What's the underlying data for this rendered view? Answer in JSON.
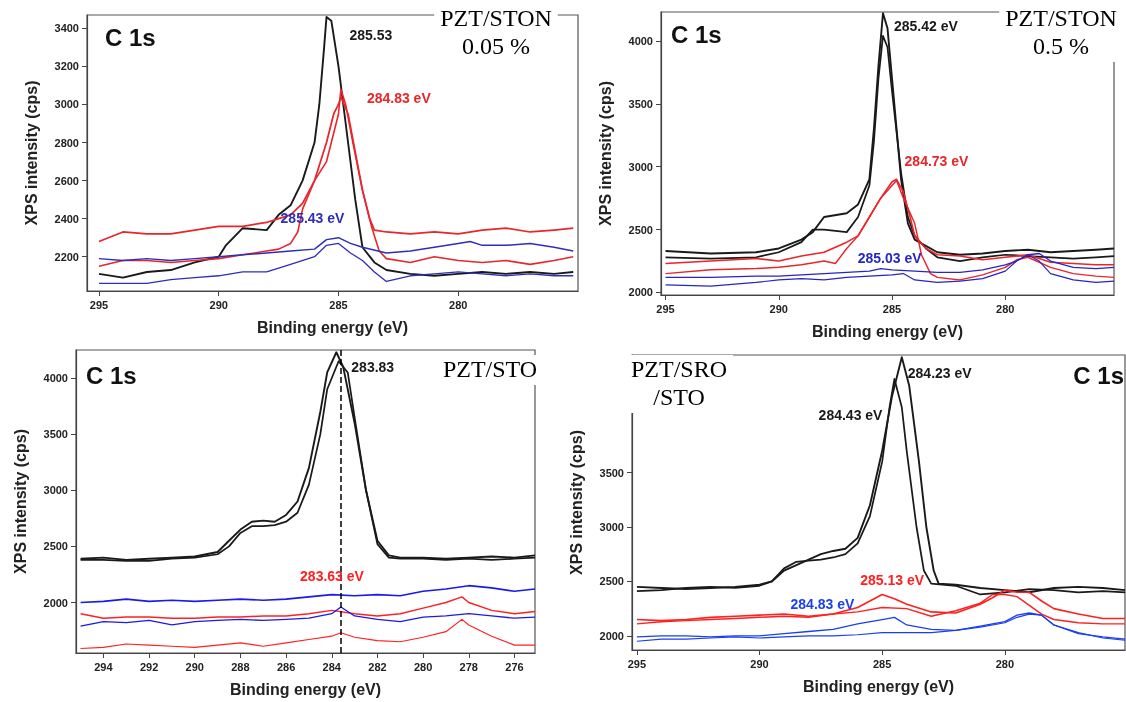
{
  "chart_data": [
    {
      "type": "line",
      "title": "PZT/STON",
      "subtitle": "0.05 %",
      "xlabel": "Binding energy (eV)",
      "ylabel": "XPS intensity (cps)",
      "xlim": [
        295.5,
        275
      ],
      "ylim": [
        2020,
        3470
      ],
      "xticks": [
        295,
        290,
        285,
        280
      ],
      "yticks": [
        2200,
        2400,
        2600,
        2800,
        3000,
        3200,
        3400
      ],
      "grid": false,
      "marker": "none",
      "annotations": [
        "C 1s",
        {
          "text": "285.53",
          "x": 285.5,
          "y": 3460
        },
        {
          "text": "284.83 eV",
          "x": 284.9,
          "y": 3080
        },
        {
          "text": "285.43 eV",
          "x": 285,
          "y": 2300
        }
      ],
      "series": [
        {
          "color": "#1a1a1a",
          "x": [
            295,
            294,
            293,
            292,
            291,
            290,
            289.7,
            289,
            288,
            287.5,
            287,
            286.5,
            286,
            285.8,
            285.6,
            285.5,
            285.3,
            285,
            284.7,
            284.3,
            284,
            283.5,
            283,
            282,
            281,
            280,
            279,
            278,
            277,
            276,
            275.2
          ],
          "values": [
            2110,
            2090,
            2120,
            2130,
            2170,
            2200,
            2260,
            2350,
            2340,
            2420,
            2470,
            2600,
            2800,
            3000,
            3300,
            3460,
            3440,
            3200,
            2900,
            2500,
            2250,
            2170,
            2130,
            2110,
            2100,
            2110,
            2120,
            2110,
            2120,
            2110,
            2120
          ]
        },
        {
          "color": "#e8262b",
          "x": [
            295,
            294,
            293,
            292,
            291,
            290,
            289,
            288,
            287.5,
            287,
            286.5,
            286,
            285.5,
            285.2,
            285,
            284.9,
            284.6,
            284.3,
            284,
            283.7,
            283.5,
            283,
            282,
            281,
            280,
            279,
            278,
            277,
            276,
            275.2
          ],
          "values": [
            2280,
            2330,
            2320,
            2320,
            2340,
            2360,
            2360,
            2380,
            2400,
            2420,
            2480,
            2600,
            2800,
            2950,
            3000,
            3040,
            2950,
            2750,
            2550,
            2400,
            2340,
            2330,
            2320,
            2330,
            2320,
            2340,
            2350,
            2330,
            2340,
            2350
          ]
        },
        {
          "color": "#e8262b",
          "x": [
            295,
            294,
            293,
            292,
            291,
            290,
            289,
            288,
            287.5,
            287,
            286.7,
            286.5,
            286,
            285.5,
            285.3,
            285,
            284.9,
            284.7,
            284.4,
            284,
            283.6,
            283.3,
            283,
            282,
            281,
            280,
            279,
            278,
            277,
            276,
            275.2
          ],
          "values": [
            2150,
            2180,
            2180,
            2170,
            2180,
            2190,
            2210,
            2230,
            2240,
            2270,
            2330,
            2450,
            2600,
            2700,
            2800,
            2950,
            3080,
            3000,
            2800,
            2550,
            2350,
            2230,
            2190,
            2170,
            2200,
            2180,
            2170,
            2180,
            2160,
            2180,
            2200
          ]
        },
        {
          "color": "#2e2eb8",
          "x": [
            295,
            294,
            293,
            292,
            291,
            290,
            289,
            288,
            287,
            286,
            285.5,
            285,
            284.5,
            284,
            283,
            282,
            281,
            280,
            279.5,
            279,
            278,
            277,
            276,
            275.2
          ],
          "values": [
            2190,
            2180,
            2190,
            2180,
            2190,
            2200,
            2210,
            2220,
            2230,
            2240,
            2290,
            2300,
            2270,
            2250,
            2220,
            2230,
            2250,
            2270,
            2280,
            2260,
            2260,
            2270,
            2250,
            2230
          ]
        },
        {
          "color": "#2e2eb8",
          "x": [
            295,
            294,
            293,
            292,
            291,
            290,
            289,
            288,
            287,
            286,
            285.5,
            285,
            284.5,
            284,
            283.5,
            283,
            282,
            281,
            280,
            279,
            278,
            277,
            276,
            275.2
          ],
          "values": [
            2060,
            2060,
            2060,
            2080,
            2090,
            2100,
            2120,
            2120,
            2160,
            2200,
            2260,
            2270,
            2220,
            2180,
            2120,
            2070,
            2100,
            2110,
            2120,
            2110,
            2100,
            2110,
            2100,
            2100
          ]
        }
      ]
    },
    {
      "type": "line",
      "title": "PZT/STON",
      "subtitle": "0.5 %",
      "xlabel": "Binding energy (eV)",
      "ylabel": "XPS intensity (cps)",
      "xlim": [
        295.2,
        275.2
      ],
      "ylim": [
        1980,
        4230
      ],
      "xticks": [
        295,
        290,
        285,
        280
      ],
      "yticks": [
        2000,
        2500,
        3000,
        3500,
        4000
      ],
      "grid": false,
      "marker": "none",
      "annotations": [
        "C 1s",
        {
          "text": "285.42 eV",
          "x": 285.4,
          "y": 4220
        },
        {
          "text": "284.73 eV",
          "x": 284.8,
          "y": 2900
        },
        {
          "text": "285.03 eV",
          "x": 285.5,
          "y": 2190
        }
      ],
      "series": [
        {
          "color": "#1a1a1a",
          "x": [
            295,
            293,
            291,
            290,
            289,
            288.5,
            288,
            287,
            286.5,
            286,
            285.8,
            285.6,
            285.4,
            285.2,
            285,
            284.6,
            284.3,
            284,
            283,
            282,
            281,
            280,
            279,
            278,
            277,
            276,
            275.2
          ],
          "values": [
            2330,
            2310,
            2320,
            2350,
            2420,
            2480,
            2600,
            2630,
            2700,
            2900,
            3300,
            3800,
            4220,
            4100,
            3700,
            2900,
            2550,
            2420,
            2320,
            2300,
            2310,
            2330,
            2340,
            2320,
            2330,
            2340,
            2350
          ]
        },
        {
          "color": "#1a1a1a",
          "x": [
            295,
            293,
            291,
            290,
            289,
            288.5,
            288,
            287,
            286.5,
            286,
            285.8,
            285.6,
            285.4,
            285.2,
            285,
            284.6,
            284.3,
            284,
            283.5,
            283,
            282,
            281,
            280,
            279,
            278,
            277,
            276,
            275.2
          ],
          "values": [
            2280,
            2270,
            2280,
            2320,
            2400,
            2500,
            2500,
            2480,
            2600,
            2850,
            3200,
            3700,
            4040,
            3950,
            3600,
            2950,
            2600,
            2450,
            2350,
            2280,
            2250,
            2280,
            2300,
            2290,
            2280,
            2270,
            2280,
            2290
          ]
        },
        {
          "color": "#e8262b",
          "x": [
            295,
            293,
            291,
            290,
            289,
            288,
            287,
            286.5,
            286,
            285.5,
            285,
            284.8,
            284.5,
            284.2,
            284,
            283.5,
            283,
            282,
            281,
            280,
            279,
            278,
            277,
            276,
            275.2
          ],
          "values": [
            2230,
            2250,
            2270,
            2250,
            2290,
            2320,
            2400,
            2450,
            2600,
            2750,
            2880,
            2900,
            2800,
            2600,
            2450,
            2350,
            2300,
            2290,
            2260,
            2280,
            2300,
            2240,
            2230,
            2220,
            2220
          ]
        },
        {
          "color": "#e8262b",
          "x": [
            295,
            293,
            291,
            290,
            289,
            288,
            287.5,
            287,
            286.5,
            286,
            285.5,
            285,
            284.8,
            284.5,
            284,
            283.7,
            283.3,
            283,
            282,
            281,
            280,
            279.5,
            279,
            278,
            277,
            276,
            275.2
          ],
          "values": [
            2150,
            2180,
            2190,
            2200,
            2220,
            2250,
            2230,
            2350,
            2450,
            2600,
            2750,
            2850,
            2890,
            2750,
            2550,
            2300,
            2150,
            2120,
            2100,
            2140,
            2200,
            2260,
            2280,
            2200,
            2150,
            2130,
            2120
          ]
        },
        {
          "color": "#2525c8",
          "x": [
            295,
            293,
            291,
            290,
            289,
            288,
            287,
            286,
            285.5,
            285,
            284,
            283,
            282,
            281,
            280,
            279.5,
            279,
            278.5,
            278,
            277,
            276,
            275.2
          ],
          "values": [
            2120,
            2120,
            2130,
            2130,
            2140,
            2150,
            2160,
            2170,
            2190,
            2180,
            2170,
            2160,
            2160,
            2180,
            2220,
            2250,
            2300,
            2310,
            2250,
            2200,
            2190,
            2200
          ]
        },
        {
          "color": "#2525c8",
          "x": [
            295,
            293,
            291,
            290,
            289,
            288,
            287,
            286,
            285,
            284.5,
            284,
            283,
            282,
            281,
            280,
            279.5,
            279,
            278.5,
            278,
            277,
            276,
            275.2
          ],
          "values": [
            2060,
            2050,
            2080,
            2100,
            2110,
            2100,
            2120,
            2130,
            2140,
            2150,
            2100,
            2080,
            2090,
            2110,
            2170,
            2250,
            2300,
            2250,
            2150,
            2100,
            2080,
            2090
          ]
        }
      ]
    },
    {
      "type": "line",
      "title": "PZT/STO",
      "xlabel": "Binding energy (eV)",
      "ylabel": "XPS intensity (cps)",
      "xlim": [
        295.2,
        275.1
      ],
      "ylim": [
        1550,
        4250
      ],
      "xticks": [
        294,
        292,
        290,
        288,
        286,
        284,
        282,
        280,
        278,
        276
      ],
      "yticks": [
        2000,
        2500,
        3000,
        3500,
        4000
      ],
      "grid": false,
      "marker": "none",
      "annotations": [
        "C 1s",
        {
          "text": "283.83",
          "x": 283.8,
          "y": 4230
        },
        "283.63 eV"
      ],
      "ref_lines": [
        {
          "axis": "x",
          "value": 283.6,
          "color": "#000000",
          "line_style": "dashed"
        }
      ],
      "series": [
        {
          "color": "#1a1a1a",
          "x": [
            295,
            294,
            293,
            292,
            291,
            290,
            289,
            288.5,
            288,
            287.5,
            287,
            286.5,
            286,
            285.5,
            285,
            284.5,
            284.2,
            283.8,
            283.5,
            283,
            282.5,
            282,
            281.5,
            281,
            280,
            279,
            278,
            277,
            276,
            275.1
          ],
          "values": [
            2390,
            2400,
            2380,
            2390,
            2400,
            2410,
            2450,
            2550,
            2650,
            2720,
            2730,
            2720,
            2780,
            2900,
            3200,
            3700,
            4050,
            4230,
            4100,
            3600,
            3000,
            2550,
            2420,
            2400,
            2400,
            2390,
            2400,
            2410,
            2400,
            2420
          ]
        },
        {
          "color": "#1a1a1a",
          "x": [
            295,
            294,
            293,
            292,
            291,
            290,
            289,
            288.5,
            288,
            287.5,
            287,
            286.5,
            286,
            285.5,
            285,
            284.5,
            284.2,
            283.7,
            283.3,
            283,
            282.5,
            282,
            281.5,
            281,
            280,
            279,
            278,
            277,
            276,
            275.1
          ],
          "values": [
            2380,
            2380,
            2370,
            2370,
            2390,
            2400,
            2430,
            2500,
            2620,
            2680,
            2680,
            2690,
            2720,
            2800,
            3050,
            3500,
            3900,
            4150,
            4050,
            3650,
            3000,
            2520,
            2400,
            2390,
            2390,
            2380,
            2390,
            2380,
            2390,
            2400
          ]
        },
        {
          "color": "#1a1aeb",
          "x": [
            295,
            294,
            293,
            292,
            291,
            290,
            289,
            288,
            287,
            286,
            285,
            284,
            283,
            282,
            281,
            280,
            279,
            278,
            277,
            276,
            275.1
          ],
          "values": [
            2000,
            2010,
            2030,
            2010,
            2020,
            2010,
            2020,
            2030,
            2020,
            2030,
            2050,
            2070,
            2060,
            2070,
            2060,
            2100,
            2120,
            2150,
            2130,
            2100,
            2120
          ]
        },
        {
          "color": "#ff2020",
          "x": [
            295,
            294,
            293,
            292,
            291,
            290,
            289,
            288,
            287,
            286,
            285,
            284,
            283,
            282,
            281,
            280,
            279,
            278.3,
            278,
            277,
            276,
            275.1
          ],
          "values": [
            1900,
            1860,
            1870,
            1870,
            1860,
            1860,
            1870,
            1870,
            1880,
            1880,
            1900,
            1930,
            1900,
            1880,
            1900,
            1950,
            2000,
            2050,
            2000,
            1930,
            1900,
            1920
          ]
        },
        {
          "color": "#1a1aeb",
          "x": [
            295,
            294,
            293,
            292,
            291,
            290,
            289,
            288,
            287,
            286,
            285,
            284,
            283.6,
            283,
            282,
            281,
            280,
            279,
            278,
            277,
            276,
            275.1
          ],
          "values": [
            1790,
            1830,
            1820,
            1840,
            1800,
            1830,
            1840,
            1850,
            1840,
            1850,
            1860,
            1900,
            1960,
            1880,
            1850,
            1830,
            1870,
            1880,
            1900,
            1880,
            1860,
            1870
          ]
        },
        {
          "color": "#ff2020",
          "x": [
            295,
            294,
            293,
            292,
            291,
            290,
            289,
            288,
            287,
            286,
            285,
            284,
            283.6,
            283,
            282,
            281,
            280,
            279,
            278.3,
            278,
            277,
            276,
            275.1
          ],
          "values": [
            1590,
            1600,
            1630,
            1620,
            1610,
            1600,
            1620,
            1640,
            1610,
            1640,
            1670,
            1700,
            1730,
            1690,
            1660,
            1650,
            1690,
            1740,
            1850,
            1800,
            1700,
            1620,
            1620
          ]
        }
      ]
    },
    {
      "type": "line",
      "title": "PZT/SRO",
      "subtitle": "/STO",
      "xlabel": "Binding energy (eV)",
      "ylabel": "XPS intensity (cps)",
      "xlim": [
        295.2,
        275.1
      ],
      "ylim": [
        1870,
        4580
      ],
      "xticks": [
        295,
        290,
        285,
        280
      ],
      "yticks": [
        2000,
        2500,
        3000,
        3500
      ],
      "grid": false,
      "marker": "none",
      "annotations": [
        "C 1s",
        {
          "text": "284.23 eV",
          "x": 284.2,
          "y": 4560
        },
        {
          "text": "284.43 eV",
          "x": 284.5,
          "y": 4360
        },
        {
          "text": "285.13 eV",
          "x": 285,
          "y": 2380
        },
        {
          "text": "284.83 eV",
          "x": 284.5,
          "y": 2170
        }
      ],
      "series": [
        {
          "color": "#1a1a1a",
          "x": [
            295,
            294,
            293,
            292,
            291,
            290,
            289.5,
            289,
            288.5,
            288,
            287.5,
            287,
            286.5,
            286,
            285.5,
            285,
            284.6,
            284.2,
            283.9,
            283.5,
            283.2,
            282.9,
            282.7,
            282,
            281,
            280,
            279,
            278,
            277,
            276,
            275.1
          ],
          "values": [
            2450,
            2440,
            2430,
            2440,
            2450,
            2470,
            2500,
            2600,
            2650,
            2700,
            2750,
            2780,
            2800,
            2900,
            3200,
            3700,
            4200,
            4560,
            4300,
            3600,
            3000,
            2600,
            2480,
            2470,
            2440,
            2420,
            2400,
            2440,
            2450,
            2440,
            2420
          ]
        },
        {
          "color": "#1a1a1a",
          "x": [
            295,
            294,
            293,
            292,
            291,
            290,
            289.5,
            289,
            288.5,
            288,
            287.5,
            287,
            286.5,
            286,
            285.5,
            285,
            284.7,
            284.5,
            284.2,
            284,
            283.6,
            283.3,
            283,
            282,
            281,
            280,
            279,
            278,
            277,
            276,
            275.1
          ],
          "values": [
            2410,
            2420,
            2440,
            2450,
            2440,
            2460,
            2500,
            2620,
            2680,
            2690,
            2700,
            2720,
            2750,
            2850,
            3100,
            3600,
            4100,
            4360,
            4100,
            3700,
            3000,
            2600,
            2480,
            2460,
            2380,
            2400,
            2430,
            2420,
            2400,
            2410,
            2400
          ]
        },
        {
          "color": "#ff2020",
          "x": [
            295,
            294,
            293,
            292,
            291,
            290,
            289,
            288,
            287,
            286,
            285.5,
            285,
            284.5,
            284,
            283,
            282,
            281,
            280.5,
            280,
            279.5,
            279,
            278.5,
            278,
            277,
            276,
            275.1
          ],
          "values": [
            2150,
            2140,
            2150,
            2170,
            2180,
            2190,
            2200,
            2180,
            2200,
            2260,
            2320,
            2380,
            2340,
            2290,
            2220,
            2210,
            2290,
            2350,
            2420,
            2400,
            2400,
            2320,
            2250,
            2200,
            2160,
            2160
          ]
        },
        {
          "color": "#ff2020",
          "x": [
            295,
            294,
            293,
            292,
            291,
            290,
            289,
            288,
            287,
            286,
            285,
            284,
            283,
            282,
            281,
            280.5,
            280,
            279.5,
            279,
            278.5,
            278,
            277,
            276,
            275.1
          ],
          "values": [
            2110,
            2130,
            2140,
            2150,
            2160,
            2170,
            2180,
            2170,
            2200,
            2220,
            2260,
            2250,
            2180,
            2230,
            2300,
            2380,
            2380,
            2360,
            2280,
            2200,
            2150,
            2120,
            2110,
            2110
          ]
        },
        {
          "color": "#1a3ff0",
          "x": [
            295,
            294,
            293,
            292,
            291,
            290,
            289,
            288,
            287,
            286,
            285,
            284.5,
            284,
            283,
            282,
            281,
            280,
            279.5,
            279,
            278.5,
            278,
            277,
            276,
            275.1
          ],
          "values": [
            1990,
            2000,
            2000,
            1990,
            2000,
            2000,
            2020,
            2040,
            2060,
            2110,
            2150,
            2170,
            2100,
            2060,
            2050,
            2090,
            2130,
            2190,
            2210,
            2190,
            2100,
            2020,
            1990,
            1970
          ]
        },
        {
          "color": "#1a3ff0",
          "x": [
            295,
            294,
            293,
            292,
            291,
            290,
            289,
            288,
            287,
            286,
            285,
            284,
            283,
            282,
            281,
            280,
            279.5,
            279,
            278.5,
            278,
            277,
            276,
            275.1
          ],
          "values": [
            1950,
            1970,
            1970,
            1980,
            1990,
            1980,
            1990,
            2000,
            2000,
            2010,
            2030,
            2030,
            2030,
            2050,
            2080,
            2120,
            2170,
            2200,
            2190,
            2100,
            2030,
            1980,
            1960
          ]
        }
      ]
    }
  ]
}
